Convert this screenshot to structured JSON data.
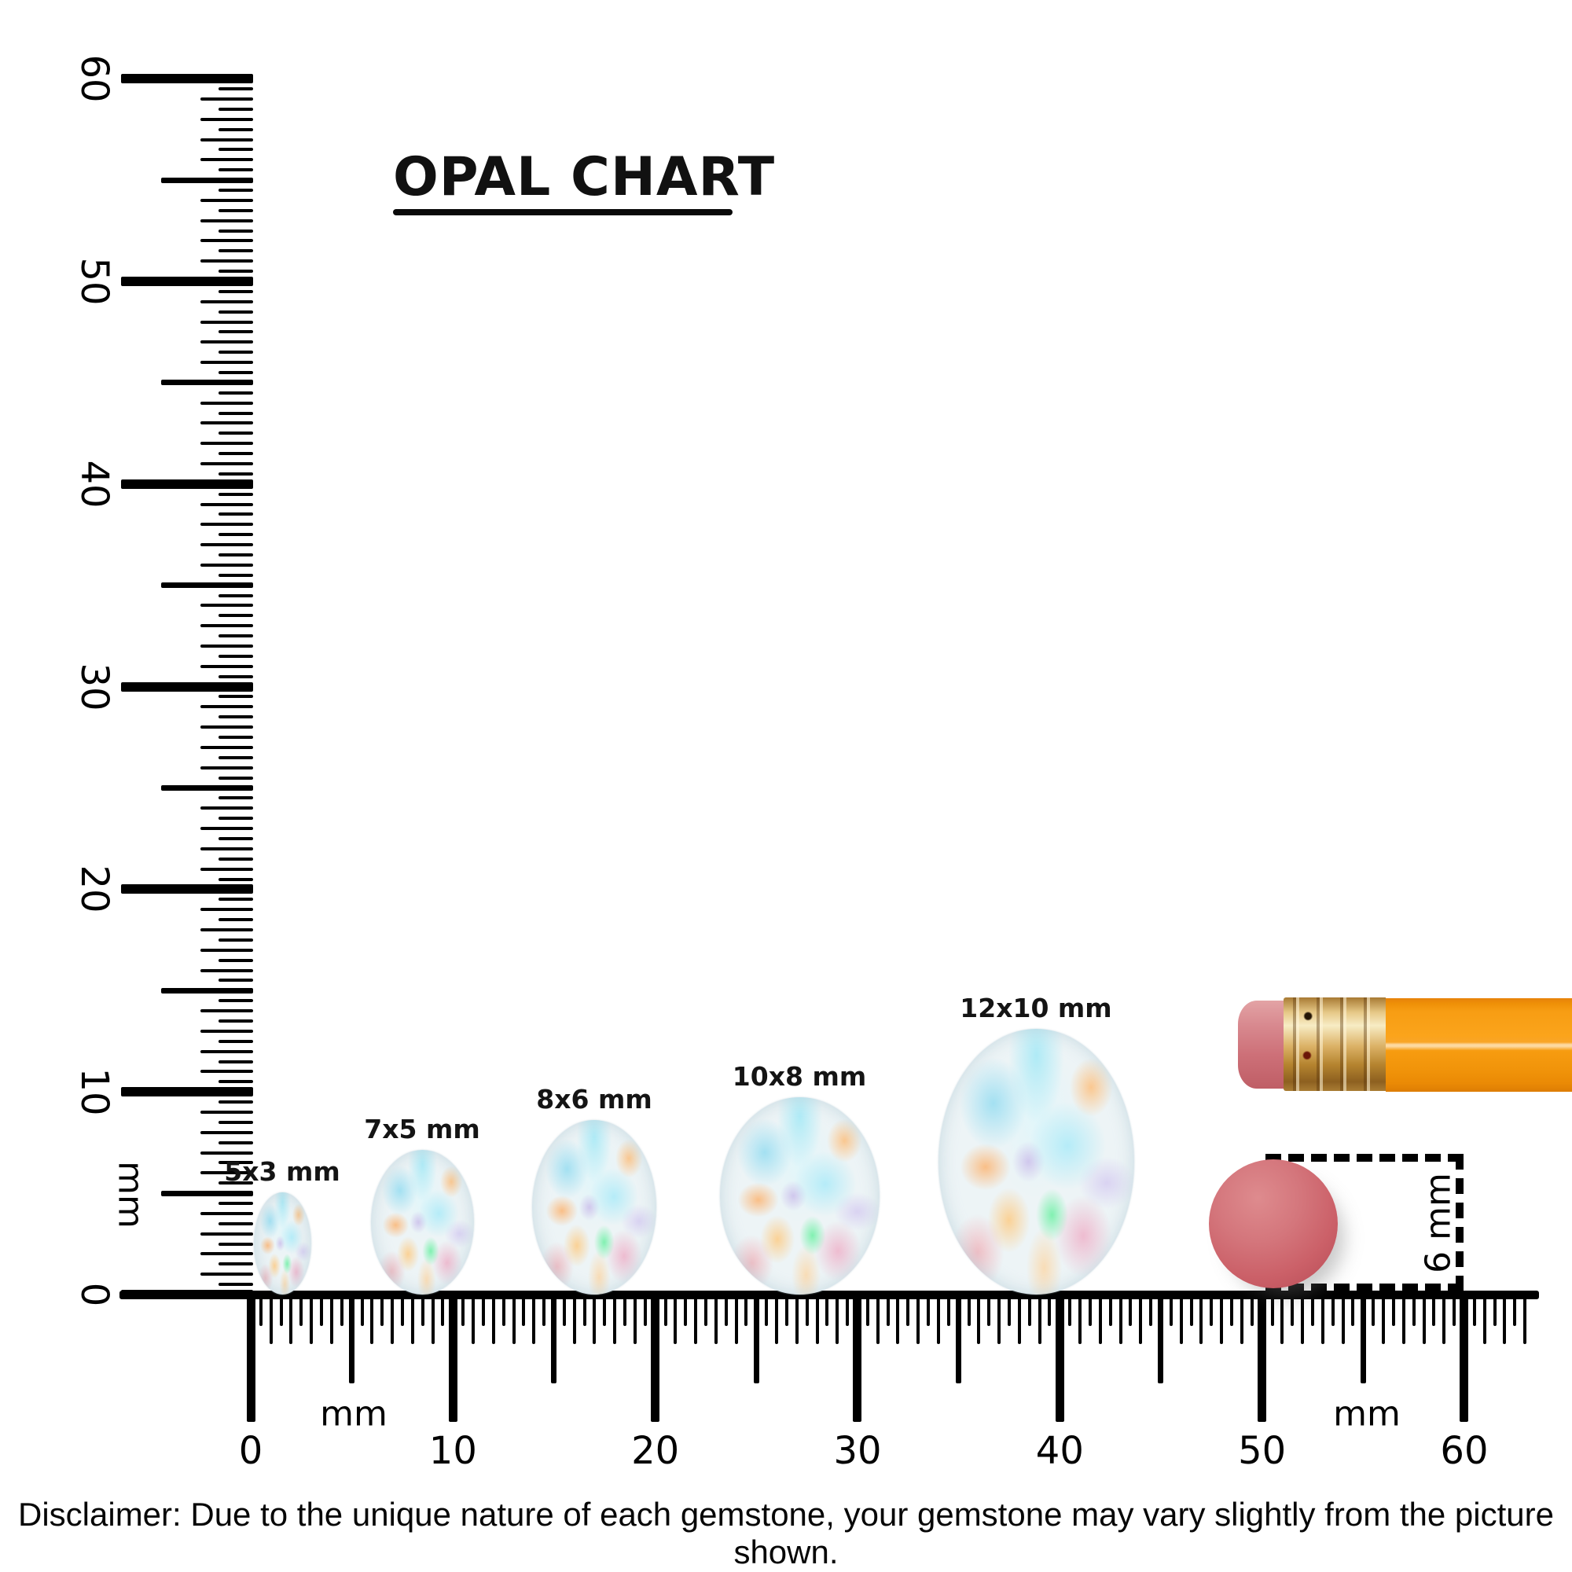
{
  "title": "OPAL CHART",
  "rulers": {
    "vertical": {
      "unit": "mm",
      "min": 0,
      "max": 60,
      "major_step_mm": 10,
      "major_labels": [
        "0",
        "10",
        "20",
        "30",
        "40",
        "50",
        "60"
      ]
    },
    "horizontal": {
      "unit_left": "mm",
      "unit_right": "mm",
      "min": 0,
      "max": 60,
      "major_step_mm": 10,
      "major_labels": [
        "0",
        "10",
        "20",
        "30",
        "40",
        "50",
        "60"
      ]
    }
  },
  "opals": [
    {
      "label": "5x3 mm",
      "height_mm": 5,
      "width_mm": 3
    },
    {
      "label": "7x5 mm",
      "height_mm": 7,
      "width_mm": 5
    },
    {
      "label": "8x6 mm",
      "height_mm": 8,
      "width_mm": 6
    },
    {
      "label": "10x8 mm",
      "height_mm": 10,
      "width_mm": 8
    },
    {
      "label": "12x10 mm",
      "height_mm": 12,
      "width_mm": 10
    }
  ],
  "eraser_reference": {
    "label": "6 mm",
    "diameter_mm": 6
  },
  "colors": {
    "ink": "#000000",
    "pencil_body_orange": "#F9A01D",
    "ferrule_gold": "#D8AE62",
    "eraser_pink": "#CD7078",
    "eraser_disc_red": "#CB6068",
    "opal_base": "#EDF4F6"
  },
  "disclaimer": "Disclaimer: Due to the unique nature of each gemstone, your gemstone may vary slightly from the picture shown."
}
